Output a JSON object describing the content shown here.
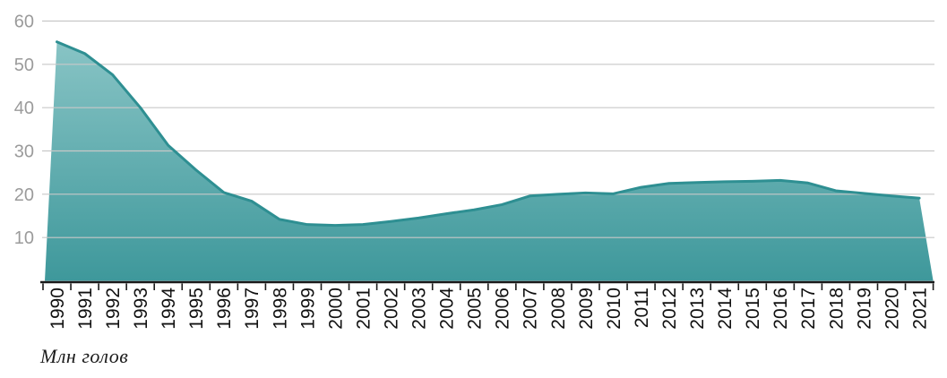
{
  "chart_data": {
    "type": "area",
    "title": "",
    "ylabel": "Млн голов",
    "xlabel": "",
    "ylim": [
      0,
      60
    ],
    "y_ticks": [
      10,
      20,
      30,
      40,
      50,
      60
    ],
    "grid": true,
    "legend_position": "none",
    "x": [
      "1990",
      "1991",
      "1992",
      "1993",
      "1994",
      "1995",
      "1996",
      "1997",
      "1998",
      "1999",
      "2000",
      "2001",
      "2002",
      "2003",
      "2004",
      "2005",
      "2006",
      "2007",
      "2008",
      "2009",
      "2010",
      "2011",
      "2012",
      "2013",
      "2014",
      "2015",
      "2016",
      "2017",
      "2018",
      "2019",
      "2020",
      "2021"
    ],
    "values": [
      55.2,
      52.5,
      47.6,
      40.0,
      31.3,
      25.6,
      20.4,
      18.4,
      14.2,
      13.0,
      12.8,
      13.0,
      13.7,
      14.5,
      15.5,
      16.4,
      17.6,
      19.6,
      20.0,
      20.3,
      20.1,
      21.6,
      22.5,
      22.7,
      22.9,
      23.0,
      23.2,
      22.6,
      20.8,
      20.2,
      19.6,
      19.1
    ]
  },
  "colors": {
    "fill_top": "#8ac5c6",
    "fill_bottom": "#3e989b",
    "line": "#2e8f92",
    "grid": "#c8c8c8",
    "axis": "#1a1a1a",
    "y_tick_text": "#9b9b9b",
    "x_tick_text": "#111111",
    "background": "#ffffff"
  }
}
